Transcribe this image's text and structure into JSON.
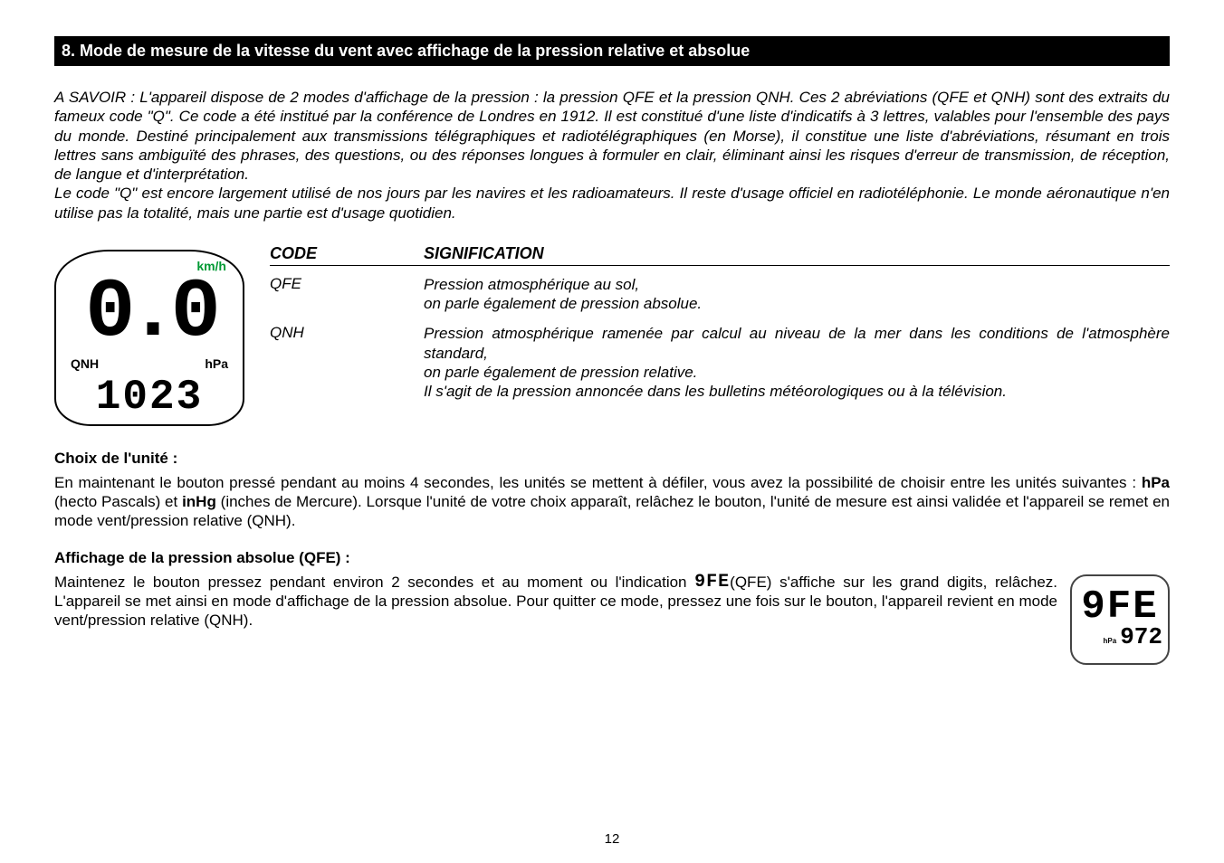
{
  "header": {
    "title": "8. Mode de mesure de la vitesse du vent avec affichage de la pression relative et absolue"
  },
  "intro": {
    "p1": "A SAVOIR : L'appareil dispose de 2 modes d'affichage de la pression : la pression QFE et la pression QNH. Ces 2 abréviations (QFE et QNH) sont des extraits du fameux code \"Q\". Ce code a été institué par la conférence de Londres en 1912. Il est constitué d'une liste d'indicatifs à 3 lettres, valables pour l'ensemble des pays du monde. Destiné principalement aux transmissions télégraphiques et radiotélégraphiques (en Morse), il constitue une liste d'abréviations, résumant en trois lettres sans ambiguïté  des phrases, des questions, ou des réponses longues à formuler en clair, éliminant ainsi les risques d'erreur de transmission, de réception, de langue et d'interprétation.",
    "p2": "Le code \"Q\" est encore largement utilisé de nos jours par les navires et les radioamateurs. Il reste d'usage officiel en radiotéléphonie. Le monde aéronautique n'en utilise pas la totalité, mais une partie est d'usage quotidien."
  },
  "lcd": {
    "kmh": "km/h",
    "big": "0.0",
    "qnh": "QNH",
    "hpa": "hPa",
    "small": "1023"
  },
  "codeTable": {
    "header": {
      "c1": "CODE",
      "c2": "SIGNIFICATION"
    },
    "rows": [
      {
        "code": "QFE",
        "text": "Pression atmosphérique au sol,\non parle également de pression absolue."
      },
      {
        "code": "QNH",
        "text": "Pression atmosphérique ramenée par calcul au niveau de la mer dans les conditions de l'atmosphère standard,\non parle également de pression relative.\nIl s'agit de la pression annoncée dans les bulletins météorologiques ou à la télévision."
      }
    ]
  },
  "unit": {
    "title": "Choix de l'unité :",
    "body_a": "En maintenant le bouton pressé pendant au moins 4 secondes, les unités se mettent à défiler, vous avez la possibilité de choisir entre les unités suivantes : ",
    "hpa": "hPa",
    "body_b": " (hecto Pascals) et ",
    "inhg": "inHg",
    "body_c": " (inches de Mercure). Lorsque l'unité de votre choix apparaît, relâchez le bouton, l'unité de mesure est ainsi validée et l'appareil se remet en mode vent/pression relative (QNH)."
  },
  "qfe": {
    "title": "Affichage de la pression absolue (QFE) :",
    "text_a": "Maintenez le bouton pressez pendant environ 2 secondes et au moment ou l'indication ",
    "icon_text": "9FE",
    "text_b": "(QFE) s'affiche sur les grand digits, relâchez. L'appareil se met ainsi en mode d'affichage de la pression absolue. Pour quitter ce mode, pressez une fois sur le bouton, l'appareil revient en mode vent/pression relative (QNH).",
    "box_big": "9FE",
    "box_hpa": "hPa",
    "box_small": "972"
  },
  "pageNumber": "12"
}
